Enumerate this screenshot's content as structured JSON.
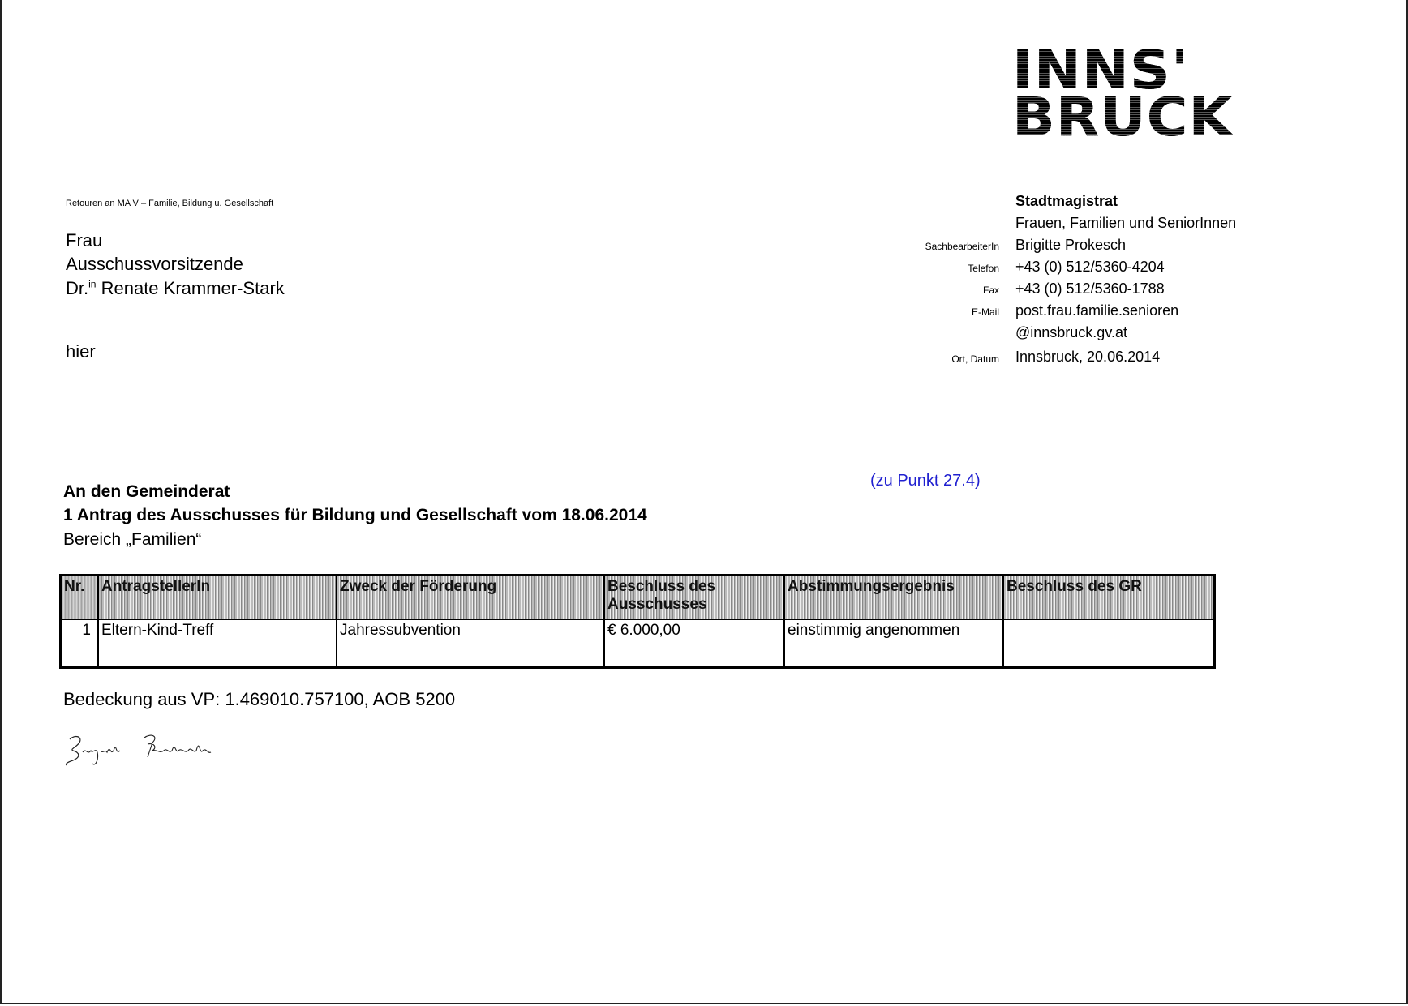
{
  "logo": {
    "line1": "INNS'",
    "line2": "BRUCK"
  },
  "return_address": "Retouren an MA V – Familie, Bildung u. Gesellschaft",
  "recipient": {
    "line1": "Frau",
    "line2": "Ausschussvorsitzende",
    "title": "Dr.",
    "title_sup": "in",
    "name": "Renate Krammer-Stark",
    "location": "hier"
  },
  "sender": {
    "org": "Stadtmagistrat",
    "department": "Frauen, Familien und SeniorInnen",
    "fields": [
      {
        "label": "SachbearbeiterIn",
        "value": "Brigitte Prokesch"
      },
      {
        "label": "Telefon",
        "value": "+43 (0) 512/5360-4204"
      },
      {
        "label": "Fax",
        "value": "+43 (0) 512/5360-1788"
      },
      {
        "label": "E-Mail",
        "value": "post.frau.familie.senioren"
      },
      {
        "label": "",
        "value": "@innsbruck.gv.at"
      },
      {
        "label": "Ort, Datum",
        "value": "Innsbruck, 20.06.2014"
      }
    ]
  },
  "reference": "(zu Punkt 27.4)",
  "subject": {
    "line1": "An den Gemeinderat",
    "line2": "1 Antrag des Ausschusses für Bildung und Gesellschaft vom 18.06.2014",
    "line3": "Bereich „Familien“"
  },
  "table": {
    "headers": [
      "Nr.",
      "AntragstellerIn",
      "Zweck der Förderung",
      "Beschluss des Ausschusses",
      "Abstimmungsergebnis",
      "Beschluss des GR"
    ],
    "rows": [
      [
        "1",
        "Eltern-Kind-Treff",
        "Jahressubvention",
        "€ 6.000,00",
        "einstimmig angenommen",
        ""
      ]
    ]
  },
  "coverage": "Bedeckung aus VP: 1.469010.757100, AOB 5200",
  "signature": "Brigitte Prokesch",
  "colors": {
    "reference": "#2020d0"
  }
}
